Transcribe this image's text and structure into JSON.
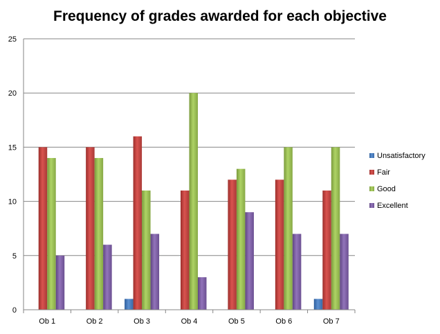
{
  "chart_data": {
    "type": "bar",
    "title": "Frequency of grades awarded for each objective",
    "xlabel": "",
    "ylabel": "",
    "ylim": [
      0,
      25
    ],
    "yticks": [
      0,
      5,
      10,
      15,
      20,
      25
    ],
    "grid": true,
    "legend_position": "right",
    "categories": [
      "Ob 1",
      "Ob 2",
      "Ob 3",
      "Ob 4",
      "Ob 5",
      "Ob 6",
      "Ob 7"
    ],
    "series": [
      {
        "name": "Unsatisfactory",
        "color": "#4a7ebb",
        "values": [
          0,
          0,
          1,
          0,
          0,
          0,
          1
        ]
      },
      {
        "name": "Fair",
        "color": "#be4b48",
        "values": [
          15,
          15,
          16,
          11,
          12,
          12,
          11
        ]
      },
      {
        "name": "Good",
        "color": "#98b954",
        "values": [
          14,
          14,
          11,
          20,
          13,
          15,
          15
        ]
      },
      {
        "name": "Excellent",
        "color": "#7d60a0",
        "values": [
          5,
          6,
          7,
          3,
          9,
          7,
          7
        ]
      }
    ]
  }
}
